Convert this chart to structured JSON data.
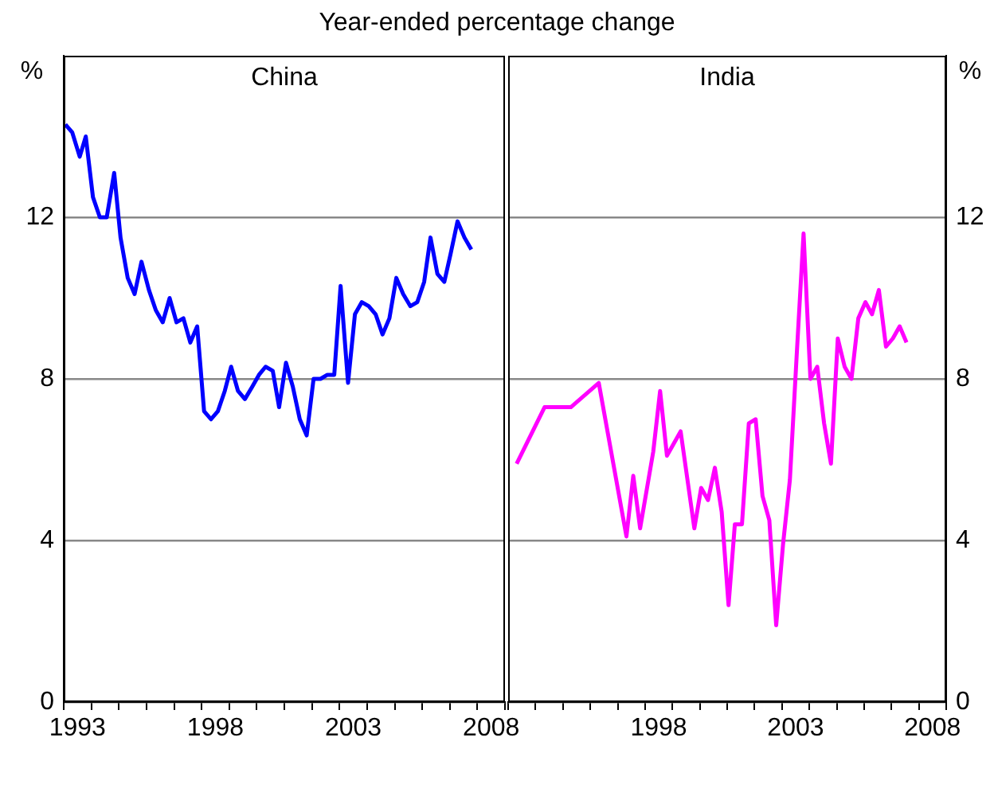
{
  "chart_data": [
    {
      "type": "line",
      "title": "Year-ended percentage change",
      "ylabel": "%",
      "xlim": [
        1993,
        2009
      ],
      "ylim": [
        0,
        16
      ],
      "yticks": [
        0,
        4,
        8,
        12
      ],
      "xticks": [
        {
          "value": 1993,
          "label": null
        },
        {
          "value": 1993.5,
          "label": "1993"
        },
        {
          "value": 1994,
          "label": null
        },
        {
          "value": 1995,
          "label": null
        },
        {
          "value": 1996,
          "label": null
        },
        {
          "value": 1997,
          "label": null
        },
        {
          "value": 1998,
          "label": null
        },
        {
          "value": 1998.5,
          "label": "1998"
        },
        {
          "value": 1999,
          "label": null
        },
        {
          "value": 2000,
          "label": null
        },
        {
          "value": 2001,
          "label": null
        },
        {
          "value": 2002,
          "label": null
        },
        {
          "value": 2003,
          "label": null
        },
        {
          "value": 2003.5,
          "label": "2003"
        },
        {
          "value": 2004,
          "label": null
        },
        {
          "value": 2005,
          "label": null
        },
        {
          "value": 2006,
          "label": null
        },
        {
          "value": 2007,
          "label": null
        },
        {
          "value": 2008,
          "label": null
        },
        {
          "value": 2008.5,
          "label": "2008"
        },
        {
          "value": 2009,
          "label": null
        }
      ],
      "grid": "y",
      "legend": false,
      "marker": "none",
      "line_style": "solid",
      "series": [
        {
          "name": "China",
          "color": "#0000ff",
          "x": [
            1993.06,
            1993.31,
            1993.58,
            1993.8,
            1994.06,
            1994.31,
            1994.56,
            1994.83,
            1995.06,
            1995.32,
            1995.57,
            1995.82,
            1996.09,
            1996.34,
            1996.59,
            1996.84,
            1997.09,
            1997.34,
            1997.59,
            1997.84,
            1998.09,
            1998.34,
            1998.59,
            1998.84,
            1999.07,
            1999.32,
            1999.57,
            1999.83,
            2000.08,
            2000.32,
            2000.58,
            2000.81,
            2001.06,
            2001.31,
            2001.56,
            2001.81,
            2002.06,
            2002.31,
            2002.56,
            2002.81,
            2003.04,
            2003.31,
            2003.56,
            2003.81,
            2004.06,
            2004.31,
            2004.56,
            2004.81,
            2005.06,
            2005.31,
            2005.57,
            2005.82,
            2006.07,
            2006.3,
            2006.55,
            2006.8,
            2007.03,
            2007.28,
            2007.53,
            2007.78
          ],
          "values": [
            14.3,
            14.1,
            13.5,
            14.0,
            12.5,
            12.0,
            12.0,
            13.1,
            11.5,
            10.5,
            10.1,
            10.9,
            10.2,
            9.7,
            9.4,
            10.0,
            9.4,
            9.5,
            8.9,
            9.3,
            7.2,
            7.0,
            7.2,
            7.7,
            8.3,
            7.7,
            7.5,
            7.8,
            8.1,
            8.3,
            8.2,
            7.3,
            8.4,
            7.8,
            7.0,
            6.6,
            8.0,
            8.0,
            8.1,
            8.1,
            10.3,
            7.9,
            9.6,
            9.9,
            9.8,
            9.6,
            9.1,
            9.5,
            10.5,
            10.1,
            9.8,
            9.9,
            10.4,
            11.5,
            10.6,
            10.4,
            11.1,
            11.9,
            11.5,
            11.2
          ]
        }
      ]
    },
    {
      "type": "line",
      "ylabel": "%",
      "xlim": [
        1993,
        2009
      ],
      "ylim": [
        0,
        16
      ],
      "yticks": [
        0,
        4,
        8,
        12
      ],
      "xticks": [
        {
          "value": 1993,
          "label": null
        },
        {
          "value": 1994,
          "label": null
        },
        {
          "value": 1995,
          "label": null
        },
        {
          "value": 1996,
          "label": null
        },
        {
          "value": 1997,
          "label": null
        },
        {
          "value": 1998,
          "label": null
        },
        {
          "value": 1998.5,
          "label": "1998"
        },
        {
          "value": 1999,
          "label": null
        },
        {
          "value": 2000,
          "label": null
        },
        {
          "value": 2001,
          "label": null
        },
        {
          "value": 2002,
          "label": null
        },
        {
          "value": 2003,
          "label": null
        },
        {
          "value": 2003.5,
          "label": "2003"
        },
        {
          "value": 2004,
          "label": null
        },
        {
          "value": 2005,
          "label": null
        },
        {
          "value": 2006,
          "label": null
        },
        {
          "value": 2007,
          "label": null
        },
        {
          "value": 2008,
          "label": null
        },
        {
          "value": 2008.5,
          "label": "2008"
        },
        {
          "value": 2009,
          "label": null
        }
      ],
      "grid": "y",
      "legend": false,
      "marker": "none",
      "line_style": "solid",
      "series": [
        {
          "name": "India",
          "color": "#ff00ff",
          "x": [
            1993.31,
            1994.33,
            1995.29,
            1996.31,
            1997.32,
            1997.57,
            1997.82,
            1998.3,
            1998.55,
            1998.8,
            1999.3,
            1999.8,
            2000.05,
            2000.3,
            2000.55,
            2000.8,
            2001.05,
            2001.28,
            2001.54,
            2001.79,
            2002.04,
            2002.29,
            2002.54,
            2002.79,
            2003.04,
            2003.29,
            2003.54,
            2003.79,
            2004.04,
            2004.29,
            2004.54,
            2004.79,
            2005.04,
            2005.29,
            2005.54,
            2005.79,
            2006.05,
            2006.29,
            2006.54,
            2006.8,
            2007.05,
            2007.3,
            2007.55
          ],
          "values": [
            5.9,
            7.3,
            7.3,
            7.9,
            4.1,
            5.6,
            4.3,
            6.2,
            7.7,
            6.1,
            6.7,
            4.3,
            5.3,
            5.0,
            5.8,
            4.7,
            2.4,
            4.4,
            4.4,
            6.9,
            7.0,
            5.1,
            4.5,
            1.9,
            3.9,
            5.5,
            8.6,
            11.6,
            8.0,
            8.3,
            6.9,
            5.9,
            9.0,
            8.3,
            8.0,
            9.5,
            9.9,
            9.6,
            10.2,
            8.8,
            9.0,
            9.3,
            8.9
          ]
        }
      ]
    }
  ]
}
